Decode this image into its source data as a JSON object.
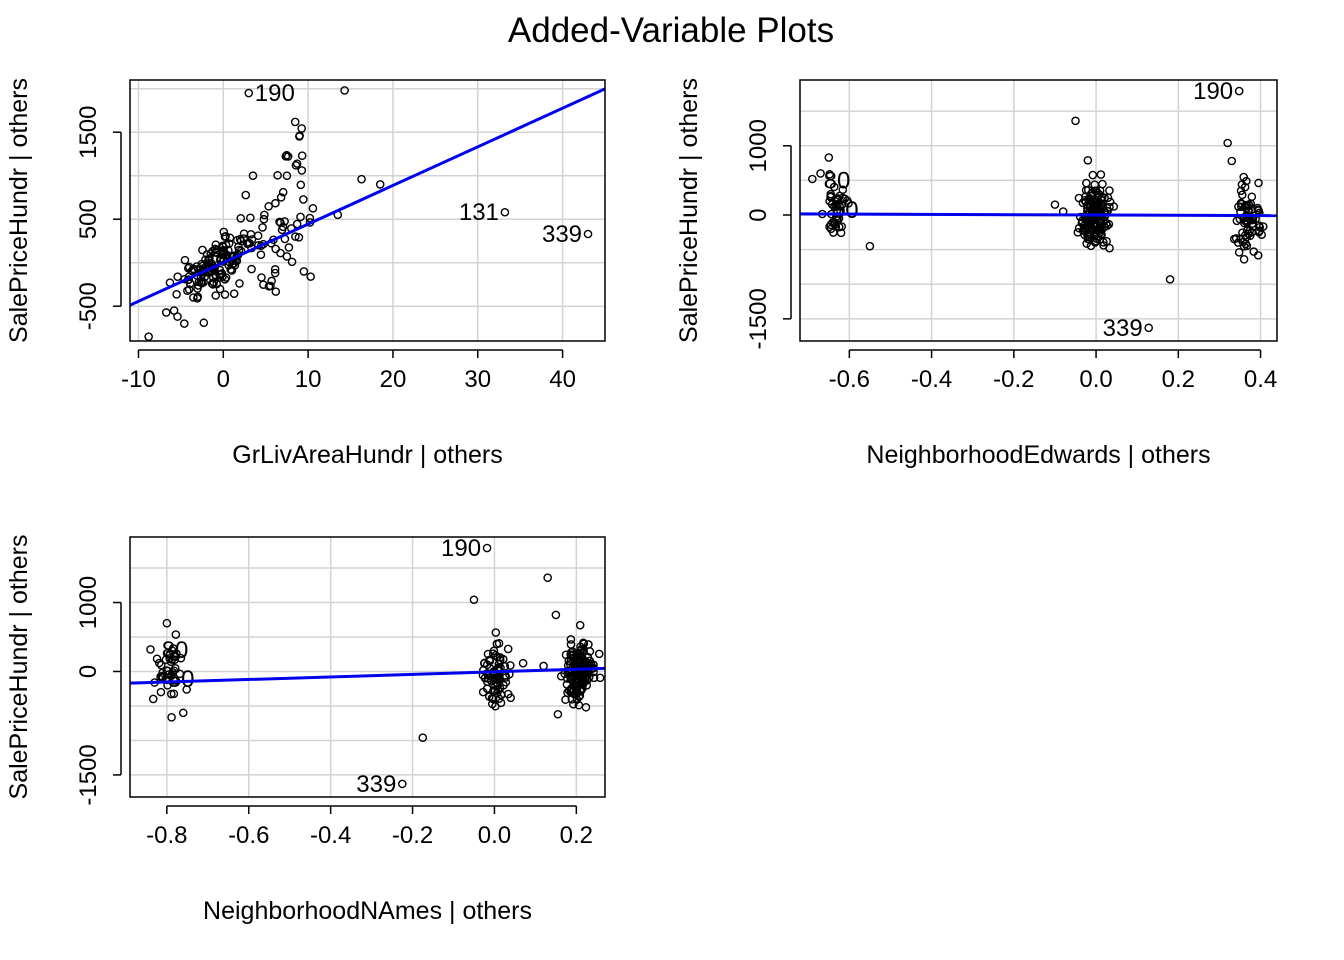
{
  "figure": {
    "title": "Added-Variable Plots"
  },
  "style": {
    "line_color": "#0000ee",
    "point_color": "#000000",
    "grid_color": "#d3d3d3"
  },
  "chart_data": [
    {
      "type": "scatter",
      "xlabel": "GrLivAreaHundr | others",
      "ylabel": "SalePriceHundr  | others",
      "xlim": [
        -11,
        45
      ],
      "ylim": [
        -900,
        2100
      ],
      "xticks": [
        -10,
        0,
        10,
        20,
        30,
        40
      ],
      "xtick_labels": [
        "-10",
        "0",
        "10",
        "20",
        "30",
        "40"
      ],
      "yticks": [
        -500,
        500,
        1500
      ],
      "ytick_labels": [
        "-500",
        "500",
        "1500"
      ],
      "grid_x": [
        -10,
        0,
        10,
        20,
        30,
        40
      ],
      "grid_y": [
        -500,
        0,
        500,
        1000,
        1500,
        2000
      ],
      "fit_line": {
        "slope": 44.4,
        "intercept": 0
      },
      "labeled_points": [
        {
          "label": "190",
          "x": 3,
          "y": 1950,
          "side": "right"
        },
        {
          "label": "131",
          "x": 33.2,
          "y": 580,
          "side": "left"
        },
        {
          "label": "339",
          "x": 43,
          "y": 330,
          "side": "left"
        }
      ],
      "cluster_spec": [
        {
          "n": 130,
          "xmean": -1,
          "xsd": 2.2,
          "ymean": -40,
          "ysd": 170,
          "corr": 0.55
        },
        {
          "n": 40,
          "xmean": 4,
          "xsd": 2.5,
          "ymean": 250,
          "ysd": 230,
          "corr": 0.4
        },
        {
          "n": 25,
          "xmean": 8,
          "xsd": 1.2,
          "ymean": 650,
          "ysd": 380,
          "corr": 0
        }
      ],
      "points": [
        [
          14.3,
          1980
        ],
        [
          7.5,
          1000
        ],
        [
          9,
          1460
        ],
        [
          9.3,
          1230
        ],
        [
          16.3,
          960
        ],
        [
          18.5,
          900
        ],
        [
          13.5,
          550
        ],
        [
          10.3,
          -160
        ],
        [
          -8.8,
          -850
        ],
        [
          -5.8,
          -550
        ],
        [
          -4.6,
          -700
        ],
        [
          -2.3,
          -690
        ],
        [
          4.5,
          -170
        ],
        [
          3.5,
          1000
        ],
        [
          9.5,
          -100
        ],
        [
          5.7,
          -210
        ],
        [
          8.5,
          300
        ]
      ]
    },
    {
      "type": "scatter",
      "xlabel": "NeighborhoodEdwards | others",
      "ylabel": "SalePriceHundr  | others",
      "xlim": [
        -0.72,
        0.44
      ],
      "ylim": [
        -1820,
        1950
      ],
      "xticks": [
        -0.6,
        -0.4,
        -0.2,
        0.0,
        0.2,
        0.4
      ],
      "xtick_labels": [
        "-0.6",
        "-0.4",
        "-0.2",
        "0.0",
        "0.2",
        "0.4"
      ],
      "yticks": [
        -1500,
        0,
        1000
      ],
      "ytick_labels": [
        "-1500",
        "0",
        "1000"
      ],
      "grid_x": [
        -0.6,
        -0.4,
        -0.2,
        0.0,
        0.2,
        0.4
      ],
      "grid_y": [
        -1500,
        -1000,
        -500,
        0,
        500,
        1000,
        1500
      ],
      "fit_line": {
        "slope": -22,
        "intercept": 0
      },
      "labeled_points": [
        {
          "label": "190",
          "x": 0.348,
          "y": 1790,
          "side": "left"
        },
        {
          "label": "339",
          "x": 0.128,
          "y": -1630,
          "side": "left"
        }
      ],
      "label_fragments": [
        {
          "text": "80",
          "x": -0.63,
          "y": 500
        },
        {
          "text": "50",
          "x": -0.61,
          "y": 70
        }
      ],
      "cluster_spec": [
        {
          "n": 40,
          "xmean": -0.63,
          "xsd": 0.015,
          "ymean": 80,
          "ysd": 260,
          "corr": 0
        },
        {
          "n": 150,
          "xmean": 0.0,
          "xsd": 0.018,
          "ymean": -30,
          "ysd": 230,
          "corr": 0
        },
        {
          "n": 70,
          "xmean": 0.37,
          "xsd": 0.015,
          "ymean": -40,
          "ysd": 260,
          "corr": 0
        }
      ],
      "points": [
        [
          -0.05,
          1360
        ],
        [
          0.32,
          1040
        ],
        [
          -0.02,
          790
        ],
        [
          -0.65,
          830
        ],
        [
          0.18,
          -930
        ],
        [
          -0.08,
          50
        ],
        [
          -0.1,
          150
        ],
        [
          0.33,
          780
        ],
        [
          -0.67,
          600
        ],
        [
          -0.69,
          520
        ],
        [
          -0.55,
          -450
        ],
        [
          0.36,
          -640
        ]
      ]
    },
    {
      "type": "scatter",
      "xlabel": "NeighborhoodNAmes | others",
      "ylabel": "SalePriceHundr  | others",
      "xlim": [
        -0.89,
        0.27
      ],
      "ylim": [
        -1820,
        1950
      ],
      "xticks": [
        -0.8,
        -0.6,
        -0.4,
        -0.2,
        0.0,
        0.2
      ],
      "xtick_labels": [
        "-0.8",
        "-0.6",
        "-0.4",
        "-0.2",
        "0.0",
        "0.2"
      ],
      "yticks": [
        -1500,
        0,
        1000
      ],
      "ytick_labels": [
        "-1500",
        "0",
        "1000"
      ],
      "grid_x": [
        -0.8,
        -0.6,
        -0.4,
        -0.2,
        0.0,
        0.2
      ],
      "grid_y": [
        -1500,
        -1000,
        -500,
        0,
        500,
        1000,
        1500
      ],
      "fit_line": {
        "slope": 185,
        "intercept": -5
      },
      "labeled_points": [
        {
          "label": "190",
          "x": -0.018,
          "y": 1790,
          "side": "left"
        },
        {
          "label": "339",
          "x": -0.225,
          "y": -1630,
          "side": "left"
        }
      ],
      "label_fragments": [
        {
          "text": "80",
          "x": -0.78,
          "y": 310
        },
        {
          "text": "50",
          "x": -0.765,
          "y": -110
        }
      ],
      "cluster_spec": [
        {
          "n": 40,
          "xmean": -0.795,
          "xsd": 0.015,
          "ymean": -40,
          "ysd": 220,
          "corr": 0
        },
        {
          "n": 70,
          "xmean": 0.0,
          "xsd": 0.015,
          "ymean": -60,
          "ysd": 230,
          "corr": 0
        },
        {
          "n": 150,
          "xmean": 0.205,
          "xsd": 0.018,
          "ymean": -20,
          "ysd": 230,
          "corr": 0
        }
      ],
      "points": [
        [
          0.13,
          1360
        ],
        [
          -0.05,
          1040
        ],
        [
          0.15,
          820
        ],
        [
          -0.8,
          700
        ],
        [
          -0.175,
          -960
        ],
        [
          0.12,
          80
        ],
        [
          0.155,
          -620
        ],
        [
          -0.84,
          320
        ],
        [
          -0.83,
          -160
        ],
        [
          -0.76,
          -600
        ],
        [
          0.07,
          120
        ]
      ]
    }
  ]
}
